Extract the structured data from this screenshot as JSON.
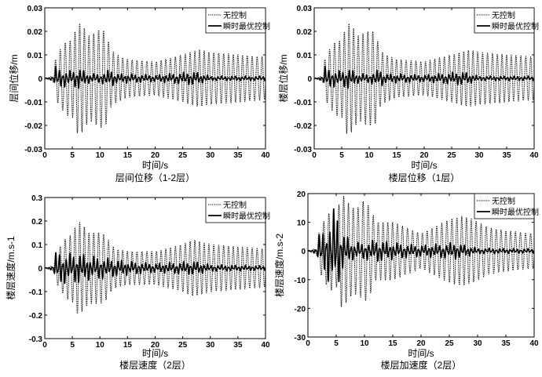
{
  "chart_data": [
    {
      "type": "line",
      "title": "层间位移（1-2层）",
      "xlabel": "时间/s",
      "ylabel": "层间位移/m",
      "xlim": [
        0,
        40
      ],
      "ylim": [
        -0.03,
        0.03
      ],
      "xticks": [
        "0",
        "5",
        "10",
        "15",
        "20",
        "25",
        "30",
        "35",
        "40"
      ],
      "yticks": [
        "0.03",
        "0.02",
        "0.01",
        "0",
        "-0.01",
        "-0.02",
        "-0.03"
      ],
      "grid": false,
      "legend_position": "top-right",
      "series": [
        {
          "name": "无控制",
          "style": "dotted",
          "peak_envelope": {
            "t": [
              0,
              1.5,
              2,
              3,
              4,
              5,
              6,
              7,
              8,
              9,
              10,
              11,
              12,
              13,
              15,
              20,
              25,
              28,
              30,
              35,
              40
            ],
            "amp": [
              0,
              0.001,
              0.009,
              0.013,
              0.016,
              0.016,
              0.024,
              0.022,
              0.018,
              0.019,
              0.021,
              0.02,
              0.012,
              0.01,
              0.008,
              0.007,
              0.01,
              0.012,
              0.011,
              0.01,
              0.009
            ]
          }
        },
        {
          "name": "瞬时最优控制",
          "style": "solid",
          "peak_envelope": {
            "t": [
              0,
              1.5,
              2,
              3,
              5,
              6,
              8,
              10,
              12,
              13,
              15,
              20,
              27,
              30,
              40
            ],
            "amp": [
              0,
              0.001,
              0.005,
              0.004,
              0.003,
              0.005,
              0.002,
              0.002,
              0.004,
              0.002,
              0.002,
              0.0015,
              0.003,
              0.001,
              0.001
            ]
          }
        }
      ]
    },
    {
      "type": "line",
      "title": "楼层位移（1层）",
      "xlabel": "时间/s",
      "ylabel": "楼层位移/m",
      "xlim": [
        0,
        40
      ],
      "ylim": [
        -0.03,
        0.03
      ],
      "xticks": [
        "0",
        "5",
        "10",
        "15",
        "20",
        "25",
        "30",
        "35",
        "40"
      ],
      "yticks": [
        "0.03",
        "0.02",
        "0.01",
        "0",
        "-0.01",
        "-0.02",
        "-0.03"
      ],
      "grid": false,
      "legend_position": "top-right",
      "series": [
        {
          "name": "无控制",
          "style": "dotted",
          "peak_envelope": {
            "t": [
              0,
              1.5,
              2,
              3,
              4,
              5,
              6,
              7,
              8,
              9,
              10,
              11,
              12,
              13,
              15,
              20,
              25,
              28,
              30,
              35,
              40
            ],
            "amp": [
              0,
              0.001,
              0.009,
              0.013,
              0.016,
              0.016,
              0.024,
              0.022,
              0.018,
              0.019,
              0.02,
              0.02,
              0.012,
              0.01,
              0.008,
              0.007,
              0.01,
              0.012,
              0.011,
              0.01,
              0.009
            ]
          }
        },
        {
          "name": "瞬时最优控制",
          "style": "solid",
          "peak_envelope": {
            "t": [
              0,
              1.5,
              2,
              3,
              5,
              6,
              8,
              10,
              12,
              13,
              15,
              20,
              27,
              30,
              40
            ],
            "amp": [
              0,
              0.001,
              0.005,
              0.004,
              0.003,
              0.005,
              0.002,
              0.002,
              0.004,
              0.002,
              0.002,
              0.0015,
              0.003,
              0.001,
              0.001
            ]
          }
        }
      ]
    },
    {
      "type": "line",
      "title": "楼层速度（2层）",
      "xlabel": "时间/s",
      "ylabel": "楼层速度/m.s-1",
      "xlim": [
        0,
        40
      ],
      "ylim": [
        -0.3,
        0.3
      ],
      "xticks": [
        "0",
        "5",
        "10",
        "15",
        "20",
        "25",
        "30",
        "35",
        "40"
      ],
      "yticks": [
        "0.3",
        "0.2",
        "0.1",
        "0",
        "-0.1",
        "-0.2",
        "-0.3"
      ],
      "grid": false,
      "legend_position": "top-right",
      "series": [
        {
          "name": "无控制",
          "style": "dotted",
          "peak_envelope": {
            "t": [
              0,
              1.5,
              2,
              3,
              4,
              5,
              6,
              7,
              8,
              9,
              10,
              11,
              12,
              13,
              15,
              20,
              25,
              27,
              30,
              35,
              40
            ],
            "amp": [
              0,
              0.01,
              0.06,
              0.1,
              0.13,
              0.14,
              0.2,
              0.18,
              0.15,
              0.15,
              0.15,
              0.14,
              0.1,
              0.08,
              0.07,
              0.07,
              0.1,
              0.12,
              0.1,
              0.09,
              0.08
            ]
          }
        },
        {
          "name": "瞬时最优控制",
          "style": "solid",
          "peak_envelope": {
            "t": [
              0,
              1.5,
              2,
              3,
              5,
              6,
              8,
              10,
              12,
              15,
              20,
              27,
              30,
              40
            ],
            "amp": [
              0,
              0.01,
              0.07,
              0.07,
              0.06,
              0.07,
              0.05,
              0.05,
              0.04,
              0.03,
              0.02,
              0.03,
              0.015,
              0.01
            ]
          }
        }
      ]
    },
    {
      "type": "line",
      "title": "楼层加速度（2层）",
      "xlabel": "时间/s",
      "ylabel": "楼层速度/m.s-2",
      "xlim": [
        0,
        40
      ],
      "ylim": [
        -30,
        20
      ],
      "xticks": [
        "0",
        "5",
        "10",
        "15",
        "20",
        "25",
        "30",
        "35",
        "40"
      ],
      "yticks": [
        "20",
        "10",
        "0",
        "-10",
        "-20",
        "-30"
      ],
      "grid": false,
      "legend_position": "top-right",
      "series": [
        {
          "name": "无控制",
          "style": "dotted",
          "peak_envelope": {
            "t": [
              0,
              1.5,
              2,
              3,
              4,
              5,
              6,
              7,
              8,
              9,
              10,
              11,
              12,
              13,
              15,
              20,
              25,
              27,
              29,
              32,
              35,
              40
            ],
            "amp": [
              0,
              1,
              7,
              11,
              14,
              12,
              20,
              17,
              15,
              15,
              18,
              15,
              10,
              10,
              10,
              6,
              11,
              12,
              11,
              8,
              7,
              6
            ]
          }
        },
        {
          "name": "瞬时最优控制",
          "style": "solid",
          "peak_envelope": {
            "t": [
              0,
              1.5,
              2,
              3,
              5,
              6,
              8,
              10,
              12,
              15,
              20,
              26,
              30,
              40
            ],
            "amp": [
              0,
              1,
              6,
              8,
              17,
              7,
              3,
              3,
              4,
              3,
              2,
              3,
              1,
              0.8
            ]
          }
        }
      ]
    }
  ]
}
